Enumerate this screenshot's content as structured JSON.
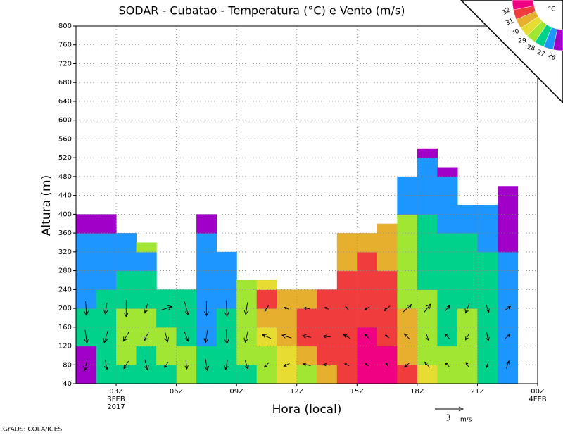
{
  "chart_data": {
    "type": "contour",
    "title": "SODAR - Cubatao - Temperatura (°C) e Vento (m/s)",
    "ylabel": "Altura (m)",
    "xlabel": "Hora (local)",
    "footer": "GrADS: COLA/IGES",
    "xlim": [
      1,
      24
    ],
    "ylim": [
      40,
      800
    ],
    "xticks": [
      {
        "value": 3,
        "label": "03Z",
        "date": "3FEB",
        "year": "2017"
      },
      {
        "value": 6,
        "label": "06Z"
      },
      {
        "value": 9,
        "label": "09Z"
      },
      {
        "value": 12,
        "label": "12Z"
      },
      {
        "value": 15,
        "label": "15Z"
      },
      {
        "value": 18,
        "label": "18Z"
      },
      {
        "value": 21,
        "label": "21Z"
      },
      {
        "value": 24,
        "label": "00Z",
        "date": "4FEB"
      }
    ],
    "yticks": [
      40,
      80,
      120,
      160,
      200,
      240,
      280,
      320,
      360,
      400,
      440,
      480,
      520,
      560,
      600,
      640,
      680,
      720,
      760,
      800
    ],
    "grid": true,
    "legend": {
      "unit": "°C",
      "levels": [
        26,
        27,
        28,
        29,
        30,
        31,
        32
      ],
      "colors": [
        "#a000c8",
        "#1e96ff",
        "#00d28c",
        "#a0e632",
        "#e6dc32",
        "#e6af2d",
        "#f03c3c",
        "#f00082"
      ]
    },
    "x_edges": [
      1,
      2,
      3,
      4,
      5,
      6,
      7,
      8,
      9,
      10,
      11,
      12,
      13,
      14,
      15,
      16,
      17,
      18,
      19,
      20,
      21,
      22,
      23
    ],
    "level_step": 40,
    "tops": [
      400,
      400,
      360,
      340,
      240,
      240,
      400,
      320,
      260,
      260,
      240,
      240,
      240,
      360,
      360,
      380,
      480,
      540,
      500,
      420,
      420,
      460
    ],
    "temperature": [
      [
        25.5,
        25.5,
        27.5,
        27.5,
        26.5,
        26.5,
        26.5,
        26.5,
        25.5
      ],
      [
        27.5,
        27.5,
        27.5,
        27.5,
        27.5,
        26.5,
        26.5,
        26.5,
        25.5
      ],
      [
        27.5,
        28.5,
        28.5,
        28.5,
        27.5,
        27.5,
        26.5,
        26.5
      ],
      [
        27.5,
        27.5,
        28.5,
        28.5,
        27.5,
        27.5,
        26.5,
        28.5
      ],
      [
        27.5,
        28.5,
        28.5,
        27.5,
        27.5
      ],
      [
        28.5,
        28.5,
        27.5,
        27.5,
        27.5
      ],
      [
        27.5,
        27.5,
        26.5,
        26.5,
        26.5,
        26.5,
        26.5,
        26.5,
        25.5
      ],
      [
        27.5,
        27.5,
        27.5,
        27.5,
        26.5,
        26.5,
        26.5
      ],
      [
        27.5,
        28.5,
        28.5,
        28.5,
        28.5,
        28.5
      ],
      [
        28.5,
        28.5,
        29.5,
        30.5,
        31.5,
        29.5
      ],
      [
        29.5,
        29.5,
        30.5,
        30.5,
        30.5
      ],
      [
        28.5,
        30.5,
        31.5,
        31.5,
        30.5
      ],
      [
        30.5,
        31.5,
        31.5,
        31.5,
        31.5
      ],
      [
        31.5,
        31.5,
        31.5,
        31.5,
        31.5,
        31.5,
        30.5,
        30.5
      ],
      [
        32.5,
        32.5,
        32.5,
        31.5,
        31.5,
        31.5,
        31.5,
        30.5
      ],
      [
        32.5,
        32.5,
        31.5,
        31.5,
        31.5,
        31.5,
        30.5,
        30.5,
        30.5
      ],
      [
        31.5,
        30.5,
        30.5,
        30.5,
        28.5,
        28.5,
        28.5,
        28.5,
        28.5,
        26.5,
        26.5
      ],
      [
        29.5,
        28.5,
        28.5,
        28.5,
        28.5,
        27.5,
        27.5,
        27.5,
        27.5,
        26.5,
        26.5,
        26.5,
        25.5
      ],
      [
        28.5,
        28.5,
        27.5,
        27.5,
        27.5,
        27.5,
        27.5,
        27.5,
        26.5,
        26.5,
        26.5,
        25.5
      ],
      [
        28.5,
        28.5,
        28.5,
        28.5,
        27.5,
        27.5,
        27.5,
        27.5,
        26.5,
        26.5
      ],
      [
        27.5,
        27.5,
        27.5,
        27.5,
        27.5,
        27.5,
        27.5,
        26.5,
        26.5,
        26.5
      ],
      [
        26.5,
        26.5,
        26.5,
        26.5,
        26.5,
        26.5,
        26.5,
        25.5,
        25.5,
        25.5,
        25.5
      ]
    ],
    "wind_levels": [
      80,
      140,
      200
    ],
    "wind_u": [
      [
        -0.3,
        0.2,
        -0.5,
        0.3,
        -0.4,
        0.1,
        0.2,
        -0.2,
        0.3,
        -0.5,
        -0.6,
        -0.8,
        -0.7,
        -0.5,
        -0.4,
        -0.3,
        -0.6,
        -0.5,
        -0.4,
        -0.3,
        -0.2,
        0.3
      ],
      [
        0.2,
        -0.4,
        -0.6,
        -0.5,
        0.3,
        0.4,
        -0.2,
        0.1,
        -0.3,
        -0.9,
        -1.0,
        -0.9,
        -0.8,
        -0.7,
        -0.5,
        -0.4,
        -0.6,
        0.3,
        -0.5,
        -0.4,
        0.2,
        0.5
      ],
      [
        0.1,
        -0.2,
        0.0,
        -0.3,
        1.2,
        0.4,
        0.0,
        0.1,
        -0.2,
        -0.4,
        -0.5,
        -0.6,
        -0.4,
        -0.3,
        -0.5,
        -0.6,
        0.9,
        0.7,
        0.5,
        -0.4,
        0.3,
        0.6
      ]
    ],
    "wind_v": [
      [
        -1.2,
        -1.0,
        -0.8,
        -1.1,
        -0.6,
        -0.9,
        -1.2,
        -1.0,
        -0.9,
        -0.5,
        -0.3,
        0.2,
        0.1,
        0.2,
        0.3,
        0.4,
        -0.5,
        0.6,
        0.4,
        0.5,
        -0.6,
        0.8
      ],
      [
        -1.4,
        -1.3,
        -1.0,
        -0.9,
        -1.1,
        -1.0,
        -1.3,
        -1.5,
        -1.2,
        0.4,
        0.3,
        0.2,
        0.1,
        0.4,
        0.5,
        0.3,
        0.6,
        -0.8,
        0.5,
        -0.7,
        -0.9,
        0.4
      ],
      [
        -1.5,
        -1.2,
        -1.8,
        -1.0,
        0.4,
        -1.4,
        -1.6,
        -1.7,
        -1.3,
        -0.6,
        0.2,
        0.1,
        0.2,
        0.3,
        -0.3,
        -0.5,
        0.8,
        0.9,
        0.6,
        -1.0,
        -0.8,
        0.4
      ]
    ],
    "wind_ref": {
      "value": 3,
      "unit": "m/s"
    }
  }
}
